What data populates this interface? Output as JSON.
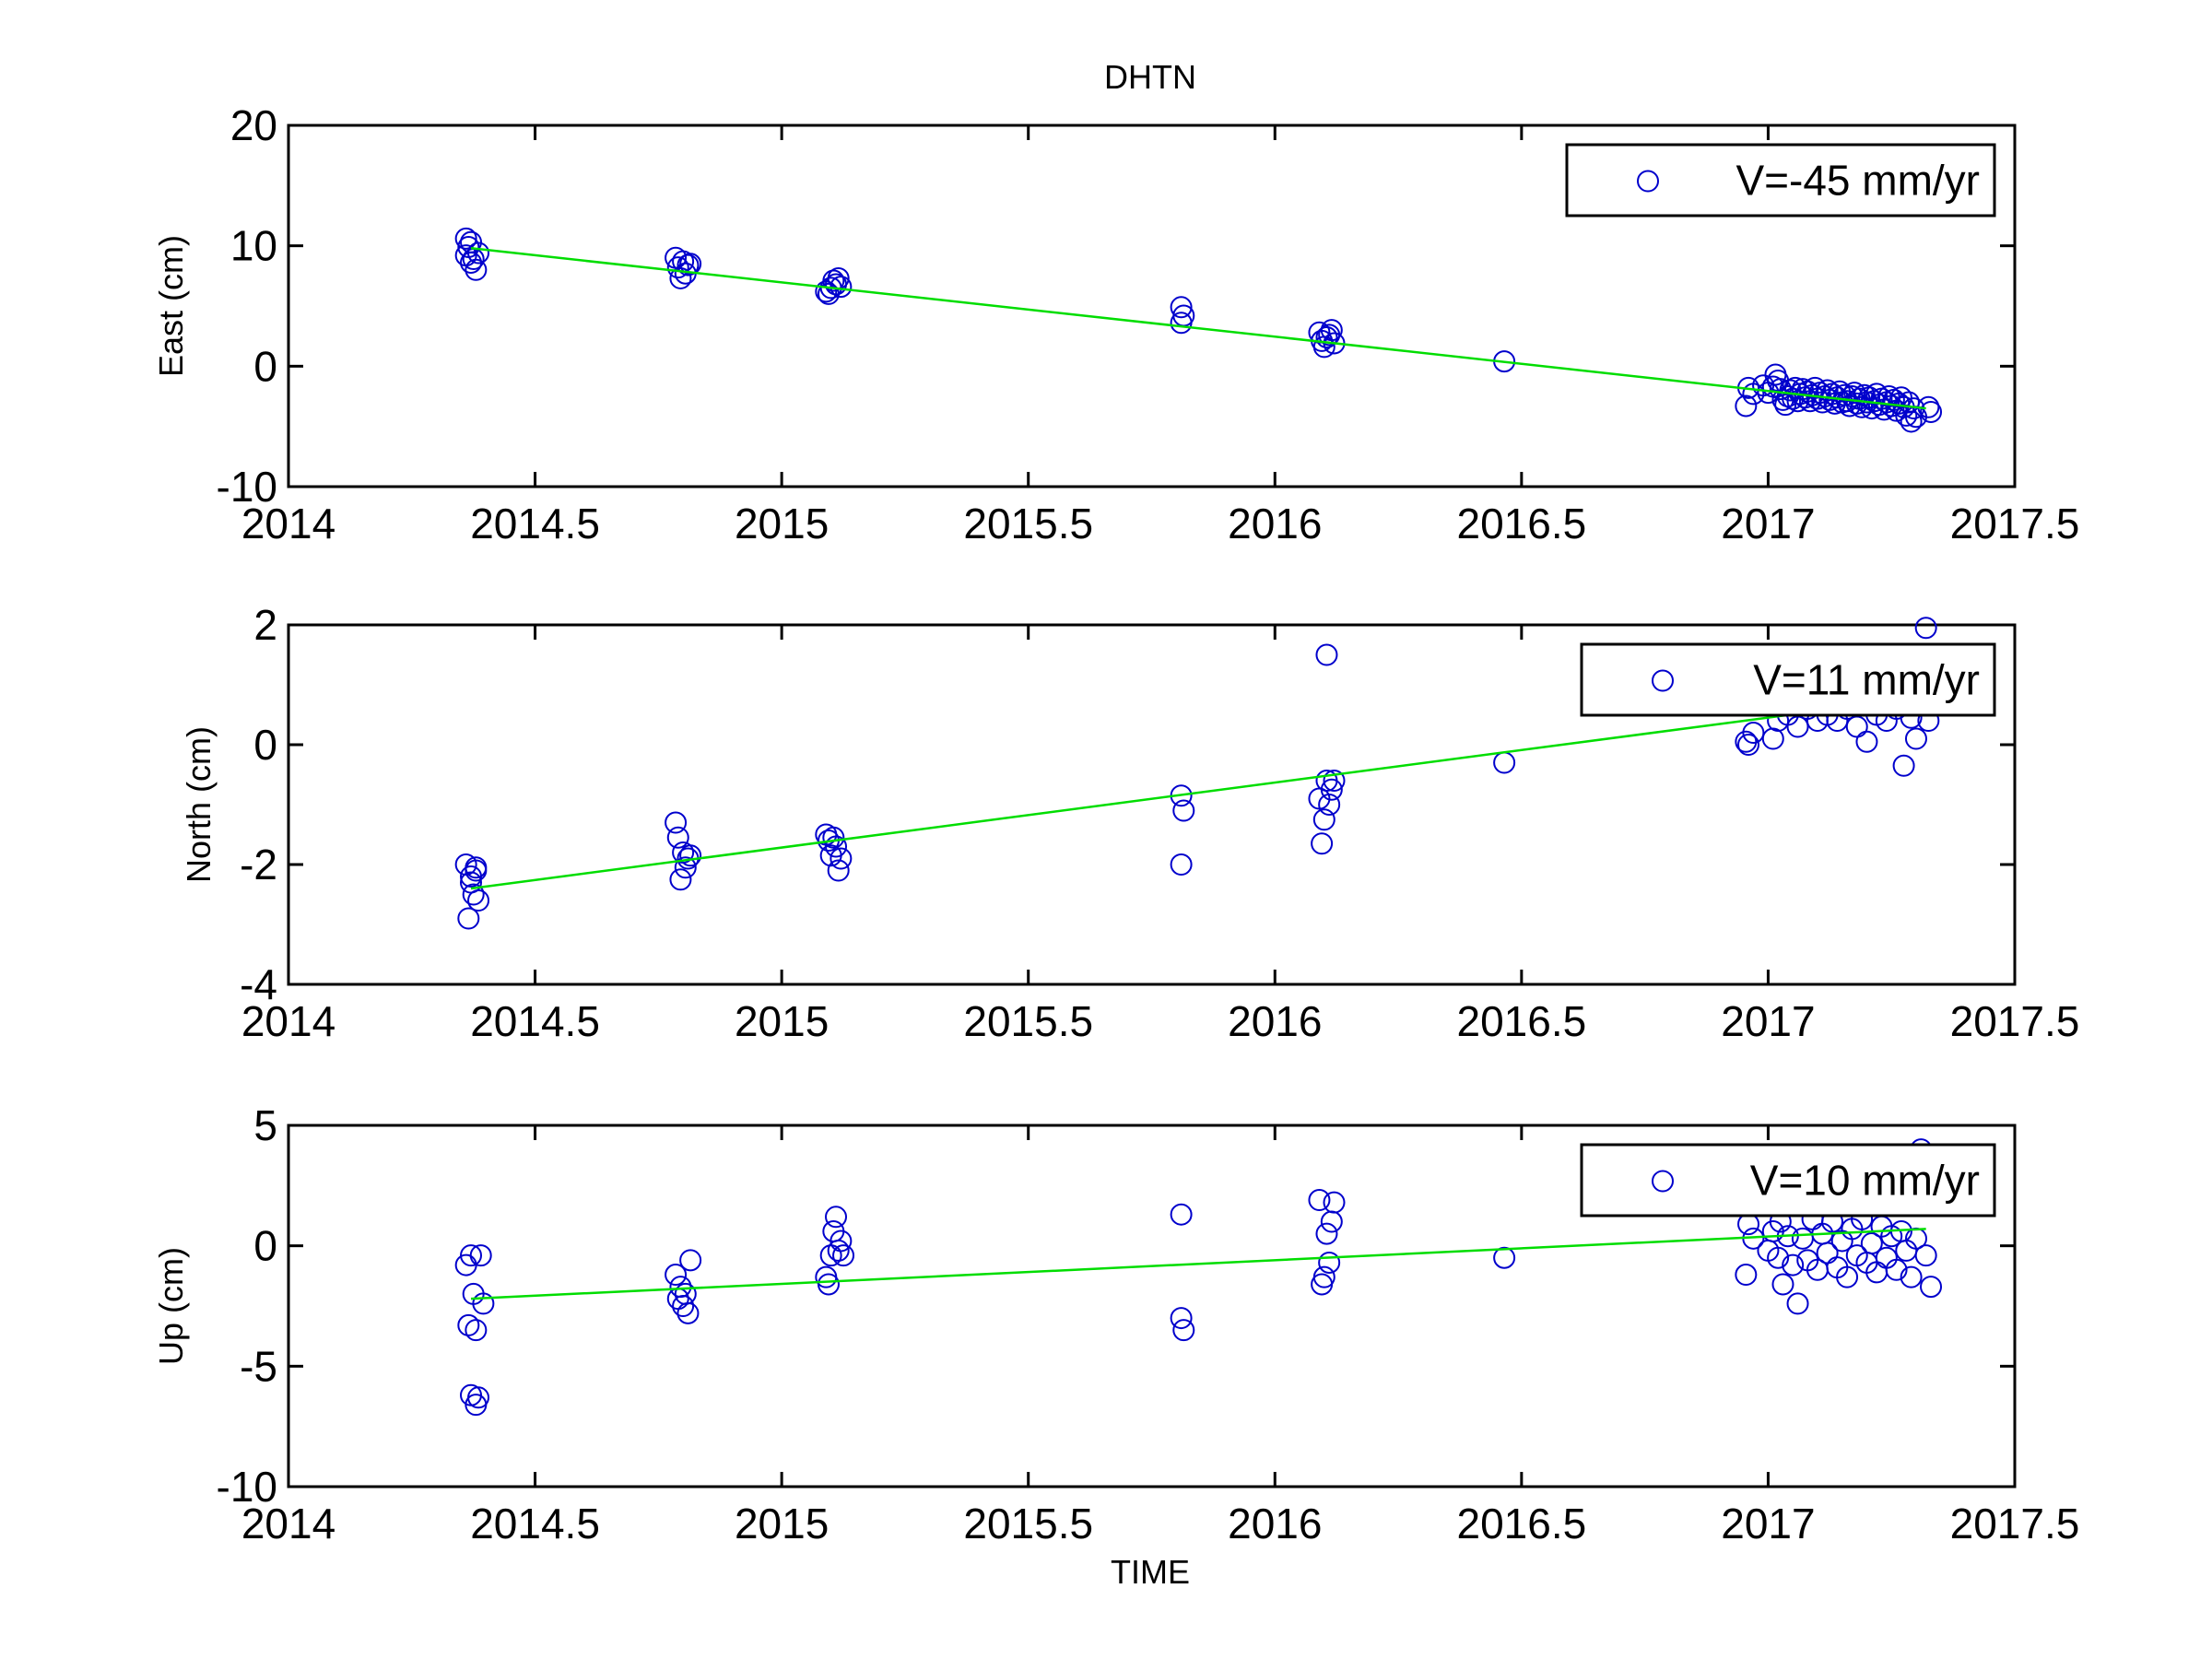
{
  "figure": {
    "title": "DHTN",
    "xlabel": "TIME"
  },
  "colors": {
    "marker": "#0000cc",
    "fit": "#00dd00",
    "axes": "#000000",
    "background": "#ffffff"
  },
  "chart_data": [
    {
      "type": "scatter",
      "title": "DHTN",
      "xlabel": "",
      "ylabel": "East (cm)",
      "xlim": [
        2014,
        2017.5
      ],
      "ylim": [
        -10,
        20
      ],
      "xticks": [
        2014,
        2014.5,
        2015,
        2015.5,
        2016,
        2016.5,
        2017,
        2017.5
      ],
      "xtick_labels": [
        "2014",
        "2014.5",
        "2015",
        "2015.5",
        "2016",
        "2016.5",
        "2017",
        "2017.5"
      ],
      "yticks": [
        -10,
        0,
        10,
        20
      ],
      "ytick_labels": [
        "-10",
        "0",
        "10",
        "20"
      ],
      "grid": false,
      "legend": {
        "position": "top-right",
        "entries": [
          "V=-45 mm/yr"
        ]
      },
      "fit_line": {
        "x": [
          2014.37,
          2017.32
        ],
        "y": [
          9.8,
          -3.5
        ]
      },
      "series": [
        {
          "name": "V=-45 mm/yr",
          "marker": "circle",
          "points": [
            [
              2014.36,
              10.6
            ],
            [
              2014.365,
              9.9
            ],
            [
              2014.37,
              10.3
            ],
            [
              2014.375,
              8.9
            ],
            [
              2014.38,
              8.0
            ],
            [
              2014.37,
              8.6
            ],
            [
              2014.385,
              9.4
            ],
            [
              2014.36,
              9.2
            ],
            [
              2014.785,
              9.0
            ],
            [
              2014.79,
              8.2
            ],
            [
              2014.795,
              7.3
            ],
            [
              2014.8,
              8.7
            ],
            [
              2014.805,
              7.7
            ],
            [
              2014.81,
              8.4
            ],
            [
              2014.815,
              8.5
            ],
            [
              2015.09,
              6.2
            ],
            [
              2015.095,
              6.0
            ],
            [
              2015.1,
              6.5
            ],
            [
              2015.105,
              7.1
            ],
            [
              2015.11,
              6.8
            ],
            [
              2015.115,
              7.3
            ],
            [
              2015.12,
              6.6
            ],
            [
              2015.81,
              4.9
            ],
            [
              2015.81,
              3.6
            ],
            [
              2015.815,
              4.2
            ],
            [
              2016.09,
              2.8
            ],
            [
              2016.095,
              2.1
            ],
            [
              2016.1,
              1.6
            ],
            [
              2016.105,
              2.4
            ],
            [
              2016.11,
              2.6
            ],
            [
              2016.115,
              3.0
            ],
            [
              2016.12,
              1.9
            ],
            [
              2016.465,
              0.4
            ],
            [
              2016.955,
              -3.3
            ],
            [
              2016.96,
              -1.8
            ],
            [
              2016.97,
              -2.3
            ],
            [
              2016.99,
              -1.6
            ],
            [
              2017.0,
              -2.2
            ],
            [
              2017.01,
              -1.7
            ],
            [
              2017.015,
              -0.7
            ],
            [
              2017.02,
              -1.2
            ],
            [
              2017.025,
              -1.9
            ],
            [
              2017.03,
              -2.8
            ],
            [
              2017.035,
              -3.2
            ],
            [
              2017.04,
              -2.5
            ],
            [
              2017.045,
              -2.0
            ],
            [
              2017.05,
              -2.7
            ],
            [
              2017.055,
              -1.8
            ],
            [
              2017.06,
              -2.9
            ],
            [
              2017.065,
              -2.3
            ],
            [
              2017.07,
              -1.9
            ],
            [
              2017.075,
              -2.6
            ],
            [
              2017.08,
              -2.1
            ],
            [
              2017.085,
              -2.9
            ],
            [
              2017.09,
              -2.4
            ],
            [
              2017.095,
              -1.8
            ],
            [
              2017.1,
              -2.7
            ],
            [
              2017.105,
              -2.2
            ],
            [
              2017.11,
              -3.0
            ],
            [
              2017.115,
              -2.5
            ],
            [
              2017.12,
              -2.0
            ],
            [
              2017.125,
              -2.8
            ],
            [
              2017.13,
              -2.3
            ],
            [
              2017.135,
              -3.1
            ],
            [
              2017.14,
              -2.6
            ],
            [
              2017.145,
              -2.1
            ],
            [
              2017.15,
              -3.0
            ],
            [
              2017.155,
              -2.4
            ],
            [
              2017.16,
              -2.9
            ],
            [
              2017.165,
              -3.3
            ],
            [
              2017.17,
              -2.5
            ],
            [
              2017.175,
              -2.2
            ],
            [
              2017.18,
              -3.1
            ],
            [
              2017.185,
              -2.7
            ],
            [
              2017.19,
              -3.4
            ],
            [
              2017.195,
              -2.4
            ],
            [
              2017.2,
              -3.0
            ],
            [
              2017.205,
              -2.6
            ],
            [
              2017.21,
              -3.5
            ],
            [
              2017.215,
              -2.9
            ],
            [
              2017.22,
              -2.3
            ],
            [
              2017.225,
              -3.2
            ],
            [
              2017.23,
              -2.7
            ],
            [
              2017.235,
              -3.6
            ],
            [
              2017.24,
              -3.0
            ],
            [
              2017.245,
              -2.5
            ],
            [
              2017.25,
              -3.3
            ],
            [
              2017.255,
              -2.8
            ],
            [
              2017.26,
              -3.7
            ],
            [
              2017.265,
              -3.1
            ],
            [
              2017.27,
              -2.6
            ],
            [
              2017.275,
              -3.4
            ],
            [
              2017.28,
              -4.1
            ],
            [
              2017.285,
              -3.0
            ],
            [
              2017.29,
              -4.6
            ],
            [
              2017.295,
              -3.5
            ],
            [
              2017.3,
              -4.2
            ],
            [
              2017.33,
              -3.8
            ],
            [
              2017.325,
              -3.4
            ]
          ]
        }
      ]
    },
    {
      "type": "scatter",
      "title": "",
      "xlabel": "",
      "ylabel": "North (cm)",
      "xlim": [
        2014,
        2017.5
      ],
      "ylim": [
        -4,
        2
      ],
      "xticks": [
        2014,
        2014.5,
        2015,
        2015.5,
        2016,
        2016.5,
        2017,
        2017.5
      ],
      "xtick_labels": [
        "2014",
        "2014.5",
        "2015",
        "2015.5",
        "2016",
        "2016.5",
        "2017",
        "2017.5"
      ],
      "yticks": [
        -4,
        -2,
        0,
        2
      ],
      "ytick_labels": [
        "-4",
        "-2",
        "0",
        "2"
      ],
      "grid": false,
      "legend": {
        "position": "top-right",
        "entries": [
          "V=11 mm/yr"
        ]
      },
      "fit_line": {
        "x": [
          2014.37,
          2017.32
        ],
        "y": [
          -2.4,
          0.8
        ]
      },
      "series": [
        {
          "name": "V=11 mm/yr",
          "marker": "circle",
          "points": [
            [
              2014.36,
              -2.0
            ],
            [
              2014.365,
              -2.9
            ],
            [
              2014.37,
              -2.2
            ],
            [
              2014.375,
              -2.5
            ],
            [
              2014.38,
              -2.1
            ],
            [
              2014.385,
              -2.6
            ],
            [
              2014.37,
              -2.3
            ],
            [
              2014.38,
              -2.05
            ],
            [
              2014.785,
              -1.3
            ],
            [
              2014.79,
              -1.55
            ],
            [
              2014.795,
              -2.25
            ],
            [
              2014.8,
              -1.8
            ],
            [
              2014.805,
              -2.05
            ],
            [
              2014.81,
              -1.9
            ],
            [
              2014.815,
              -1.85
            ],
            [
              2015.09,
              -1.5
            ],
            [
              2015.095,
              -1.6
            ],
            [
              2015.1,
              -1.85
            ],
            [
              2015.105,
              -1.55
            ],
            [
              2015.11,
              -1.7
            ],
            [
              2015.115,
              -2.1
            ],
            [
              2015.12,
              -1.9
            ],
            [
              2015.81,
              -0.85
            ],
            [
              2015.81,
              -2.0
            ],
            [
              2015.815,
              -1.1
            ],
            [
              2016.09,
              -0.9
            ],
            [
              2016.095,
              -1.65
            ],
            [
              2016.1,
              -1.25
            ],
            [
              2016.105,
              -0.6
            ],
            [
              2016.11,
              -1.0
            ],
            [
              2016.115,
              -0.75
            ],
            [
              2016.12,
              -0.6
            ],
            [
              2016.105,
              1.5
            ],
            [
              2016.465,
              -0.3
            ],
            [
              2016.955,
              0.05
            ],
            [
              2016.96,
              0.0
            ],
            [
              2016.97,
              0.2
            ],
            [
              2017.01,
              0.1
            ],
            [
              2017.02,
              0.4
            ],
            [
              2017.04,
              0.5
            ],
            [
              2017.06,
              0.3
            ],
            [
              2017.08,
              0.6
            ],
            [
              2017.1,
              0.4
            ],
            [
              2017.12,
              0.5
            ],
            [
              2017.14,
              0.4
            ],
            [
              2017.16,
              0.6
            ],
            [
              2017.18,
              0.3
            ],
            [
              2017.2,
              0.05
            ],
            [
              2017.22,
              0.5
            ],
            [
              2017.24,
              0.4
            ],
            [
              2017.26,
              0.6
            ],
            [
              2017.275,
              -0.35
            ],
            [
              2017.29,
              0.45
            ],
            [
              2017.3,
              0.1
            ],
            [
              2017.32,
              1.95
            ],
            [
              2017.325,
              0.4
            ]
          ]
        }
      ]
    },
    {
      "type": "scatter",
      "title": "",
      "xlabel": "TIME",
      "ylabel": "Up (cm)",
      "xlim": [
        2014,
        2017.5
      ],
      "ylim": [
        -10,
        5
      ],
      "xticks": [
        2014,
        2014.5,
        2015,
        2015.5,
        2016,
        2016.5,
        2017,
        2017.5
      ],
      "xtick_labels": [
        "2014",
        "2014.5",
        "2015",
        "2015.5",
        "2016",
        "2016.5",
        "2017",
        "2017.5"
      ],
      "yticks": [
        -10,
        -5,
        0,
        5
      ],
      "ytick_labels": [
        "-10",
        "-5",
        "0",
        "5"
      ],
      "grid": false,
      "legend": {
        "position": "top-right",
        "entries": [
          "V=10 mm/yr"
        ]
      },
      "fit_line": {
        "x": [
          2014.37,
          2017.32
        ],
        "y": [
          -2.2,
          0.7
        ]
      },
      "series": [
        {
          "name": "V=10 mm/yr",
          "marker": "circle",
          "points": [
            [
              2014.36,
              -0.8
            ],
            [
              2014.365,
              -3.3
            ],
            [
              2014.37,
              -0.4
            ],
            [
              2014.375,
              -2.0
            ],
            [
              2014.38,
              -3.5
            ],
            [
              2014.37,
              -6.2
            ],
            [
              2014.38,
              -6.6
            ],
            [
              2014.385,
              -6.3
            ],
            [
              2014.39,
              -0.4
            ],
            [
              2014.395,
              -2.4
            ],
            [
              2014.785,
              -1.2
            ],
            [
              2014.79,
              -2.2
            ],
            [
              2014.795,
              -1.7
            ],
            [
              2014.8,
              -2.5
            ],
            [
              2014.805,
              -2.0
            ],
            [
              2014.81,
              -2.8
            ],
            [
              2014.815,
              -0.6
            ],
            [
              2015.09,
              -1.3
            ],
            [
              2015.095,
              -1.6
            ],
            [
              2015.1,
              -0.4
            ],
            [
              2015.105,
              0.6
            ],
            [
              2015.11,
              1.2
            ],
            [
              2015.115,
              -0.2
            ],
            [
              2015.12,
              0.2
            ],
            [
              2015.125,
              -0.4
            ],
            [
              2015.81,
              1.3
            ],
            [
              2015.81,
              -3.0
            ],
            [
              2015.815,
              -3.5
            ],
            [
              2016.09,
              1.9
            ],
            [
              2016.095,
              -1.6
            ],
            [
              2016.1,
              -1.3
            ],
            [
              2016.105,
              0.5
            ],
            [
              2016.11,
              -0.7
            ],
            [
              2016.115,
              1.0
            ],
            [
              2016.12,
              1.8
            ],
            [
              2016.465,
              -0.5
            ],
            [
              2016.955,
              -1.2
            ],
            [
              2016.96,
              0.9
            ],
            [
              2016.97,
              0.3
            ],
            [
              2017.0,
              -0.2
            ],
            [
              2017.01,
              0.6
            ],
            [
              2017.02,
              -0.5
            ],
            [
              2017.025,
              1.0
            ],
            [
              2017.03,
              -1.6
            ],
            [
              2017.04,
              0.4
            ],
            [
              2017.05,
              -0.8
            ],
            [
              2017.06,
              -2.4
            ],
            [
              2017.07,
              0.3
            ],
            [
              2017.08,
              -0.6
            ],
            [
              2017.09,
              1.1
            ],
            [
              2017.1,
              -1.0
            ],
            [
              2017.11,
              0.5
            ],
            [
              2017.12,
              -0.3
            ],
            [
              2017.13,
              1.0
            ],
            [
              2017.14,
              -0.9
            ],
            [
              2017.15,
              0.2
            ],
            [
              2017.16,
              -1.3
            ],
            [
              2017.17,
              0.7
            ],
            [
              2017.18,
              -0.4
            ],
            [
              2017.19,
              1.1
            ],
            [
              2017.2,
              -0.7
            ],
            [
              2017.21,
              0.1
            ],
            [
              2017.22,
              -1.1
            ],
            [
              2017.23,
              0.8
            ],
            [
              2017.24,
              -0.5
            ],
            [
              2017.25,
              0.4
            ],
            [
              2017.26,
              -1.0
            ],
            [
              2017.27,
              0.6
            ],
            [
              2017.28,
              -0.2
            ],
            [
              2017.29,
              -1.3
            ],
            [
              2017.3,
              0.3
            ],
            [
              2017.31,
              4.0
            ],
            [
              2017.32,
              -0.4
            ],
            [
              2017.33,
              -1.7
            ]
          ]
        }
      ]
    }
  ]
}
